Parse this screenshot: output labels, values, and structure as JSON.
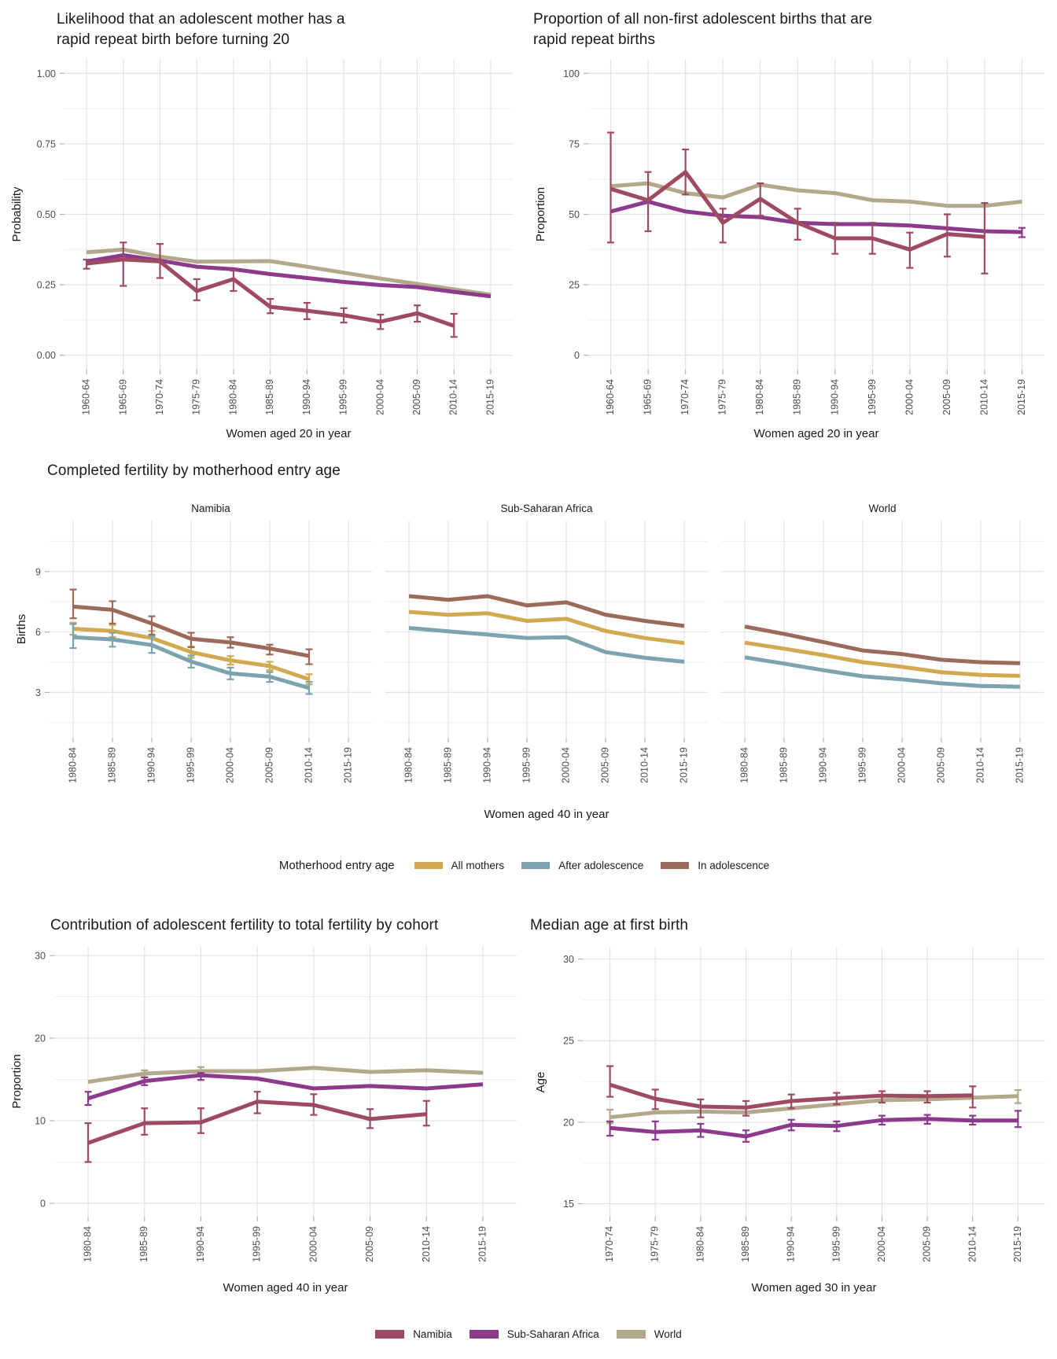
{
  "colors": {
    "namibia": "#9e4a60",
    "sub_saharan_africa": "#8b3a8c",
    "world": "#b3a88a",
    "all_mothers": "#d2a950",
    "after_adolescence": "#7ba4ae",
    "in_adolescence": "#9c6a5b",
    "grid_major": "#e3e3e3",
    "grid_minor": "#f0f0f0",
    "tick_mark": "#b3b3b3",
    "title_text": "#1a1a1a",
    "tick_text": "#4d4d4d"
  },
  "legend_mid": {
    "title": "Motherhood entry age",
    "items": [
      {
        "label": "All mothers",
        "color": "all_mothers"
      },
      {
        "label": "After adolescence",
        "color": "after_adolescence"
      },
      {
        "label": "In adolescence",
        "color": "in_adolescence"
      }
    ]
  },
  "legend_bottom": {
    "items": [
      {
        "label": "Namibia",
        "color": "namibia"
      },
      {
        "label": "Sub-Saharan Africa",
        "color": "sub_saharan_africa"
      },
      {
        "label": "World",
        "color": "world"
      }
    ]
  },
  "chart_data": [
    {
      "id": "rrb_likelihood",
      "type": "line",
      "title": "Likelihood that an adolescent mother has a\nrapid repeat birth before turning 20",
      "xlabel": "Women aged 20 in year",
      "ylabel": "Probability",
      "categories": [
        "1960-64",
        "1965-69",
        "1970-74",
        "1975-79",
        "1980-84",
        "1985-89",
        "1990-94",
        "1995-99",
        "2000-04",
        "2005-09",
        "2010-14",
        "2015-19"
      ],
      "ylim": [
        0,
        1
      ],
      "ydomain": [
        -0.051,
        1.051
      ],
      "yticks": [
        {
          "v": 0,
          "label": "0.00"
        },
        {
          "v": 0.25,
          "label": "0.25"
        },
        {
          "v": 0.5,
          "label": "0.50"
        },
        {
          "v": 0.75,
          "label": "0.75"
        },
        {
          "v": 1,
          "label": "1.00"
        }
      ],
      "yminor": [
        0.125,
        0.375,
        0.625,
        0.875
      ],
      "series": [
        {
          "name": "World",
          "color": "world",
          "values": [
            0.365,
            0.375,
            0.35,
            0.332,
            0.333,
            0.334,
            0.314,
            0.293,
            0.272,
            0.253,
            0.234,
            0.215
          ]
        },
        {
          "name": "Sub-Saharan Africa",
          "color": "sub_saharan_africa",
          "values": [
            0.333,
            0.355,
            0.336,
            0.314,
            0.305,
            0.288,
            0.274,
            0.26,
            0.249,
            0.242,
            0.225,
            0.209
          ]
        },
        {
          "name": "Namibia",
          "color": "namibia",
          "values": [
            0.325,
            0.34,
            0.333,
            0.228,
            0.27,
            0.172,
            0.158,
            0.142,
            0.119,
            0.149,
            0.104,
            null
          ],
          "lo": [
            0.307,
            0.246,
            0.274,
            0.195,
            0.228,
            0.149,
            0.128,
            0.116,
            0.093,
            0.119,
            0.065,
            null
          ],
          "hi": [
            0.339,
            0.4,
            0.395,
            0.27,
            0.3,
            0.2,
            0.186,
            0.167,
            0.144,
            0.177,
            0.147,
            null
          ]
        }
      ]
    },
    {
      "id": "rrb_proportion",
      "type": "line",
      "title": "Proportion of all non-first adolescent births that are\nrapid repeat births",
      "xlabel": "Women aged 20 in year",
      "ylabel": "Proportion",
      "categories": [
        "1960-64",
        "1965-69",
        "1970-74",
        "1975-79",
        "1980-84",
        "1985-89",
        "1990-94",
        "1995-99",
        "2000-04",
        "2005-09",
        "2010-14",
        "2015-19"
      ],
      "ylim": [
        0,
        100
      ],
      "ydomain": [
        -5.1,
        105.1
      ],
      "yticks": [
        {
          "v": 0,
          "label": "0"
        },
        {
          "v": 25,
          "label": "25"
        },
        {
          "v": 50,
          "label": "50"
        },
        {
          "v": 75,
          "label": "75"
        },
        {
          "v": 100,
          "label": "100"
        }
      ],
      "yminor": [
        12.5,
        37.5,
        62.5,
        87.5
      ],
      "series": [
        {
          "name": "World",
          "color": "world",
          "values": [
            60,
            61,
            57.5,
            56,
            60.5,
            58.5,
            57.5,
            55,
            54.5,
            53,
            53,
            54.5
          ]
        },
        {
          "name": "Sub-Saharan Africa",
          "color": "sub_saharan_africa",
          "values": [
            51,
            54.5,
            51,
            49.5,
            49,
            47,
            46.5,
            46.5,
            46,
            45,
            44,
            43.7
          ],
          "lo": [
            null,
            null,
            null,
            null,
            null,
            null,
            null,
            null,
            null,
            null,
            null,
            41.9
          ],
          "hi": [
            null,
            null,
            null,
            null,
            null,
            null,
            null,
            null,
            null,
            null,
            null,
            45.2
          ]
        },
        {
          "name": "Namibia",
          "color": "namibia",
          "values": [
            59,
            55,
            65,
            47,
            55.5,
            47,
            41.5,
            41.5,
            37.5,
            43,
            42,
            null
          ],
          "lo": [
            40,
            44,
            57,
            40,
            49.5,
            41,
            36,
            36,
            31,
            35,
            29,
            null
          ],
          "hi": [
            79,
            65,
            73,
            52,
            61,
            52,
            47,
            47,
            43.5,
            50,
            54,
            null
          ]
        }
      ]
    },
    {
      "id": "completed_fertility",
      "type": "line",
      "title": "Completed fertility by motherhood entry age",
      "xlabel": "Women aged 40 in year",
      "ylabel": "Births",
      "categories": [
        "1980-84",
        "1985-89",
        "1990-94",
        "1995-99",
        "2000-04",
        "2005-09",
        "2010-14",
        "2015-19"
      ],
      "ylim": [
        3,
        9
      ],
      "ydomain": [
        0.75,
        11.53
      ],
      "yticks": [
        {
          "v": 3,
          "label": "3"
        },
        {
          "v": 6,
          "label": "6"
        },
        {
          "v": 9,
          "label": "9"
        }
      ],
      "yminor": [
        1.5,
        4.5,
        7.5,
        10.5
      ],
      "facets": [
        {
          "label": "Namibia",
          "series": [
            {
              "name": "All mothers",
              "color": "all_mothers",
              "values": [
                6.16,
                6.05,
                5.7,
                5.0,
                4.59,
                4.31,
                3.65,
                null
              ],
              "lo": [
                5.86,
                5.75,
                5.35,
                4.72,
                4.38,
                4.1,
                3.4,
                null
              ],
              "hi": [
                6.46,
                6.35,
                6.05,
                5.28,
                4.8,
                4.52,
                3.9,
                null
              ]
            },
            {
              "name": "After adolescence",
              "color": "after_adolescence",
              "values": [
                5.74,
                5.63,
                5.35,
                4.53,
                3.94,
                3.78,
                3.22,
                null
              ],
              "lo": [
                5.2,
                5.27,
                4.96,
                4.23,
                3.65,
                3.52,
                2.92,
                null
              ],
              "hi": [
                6.39,
                5.96,
                5.79,
                4.83,
                4.23,
                4.01,
                3.52,
                null
              ]
            },
            {
              "name": "In adolescence",
              "color": "in_adolescence",
              "values": [
                7.26,
                7.1,
                6.42,
                5.66,
                5.48,
                5.18,
                4.81,
                null
              ],
              "lo": [
                6.68,
                6.42,
                5.87,
                5.24,
                5.22,
                4.88,
                4.4,
                null
              ],
              "hi": [
                8.11,
                7.53,
                6.78,
                5.96,
                5.74,
                5.37,
                5.14,
                null
              ]
            }
          ]
        },
        {
          "label": "Sub-Saharan Africa",
          "series": [
            {
              "name": "All mothers",
              "color": "all_mothers",
              "values": [
                7.0,
                6.85,
                6.93,
                6.55,
                6.65,
                6.05,
                5.7,
                5.45
              ]
            },
            {
              "name": "After adolescence",
              "color": "after_adolescence",
              "values": [
                6.2,
                6.03,
                5.87,
                5.7,
                5.74,
                5.0,
                4.72,
                4.52
              ]
            },
            {
              "name": "In adolescence",
              "color": "in_adolescence",
              "values": [
                7.78,
                7.6,
                7.78,
                7.32,
                7.47,
                6.86,
                6.55,
                6.3
              ]
            }
          ]
        },
        {
          "label": "World",
          "series": [
            {
              "name": "All mothers",
              "color": "all_mothers",
              "values": [
                5.47,
                5.17,
                4.85,
                4.5,
                4.27,
                4.0,
                3.87,
                3.82
              ]
            },
            {
              "name": "After adolescence",
              "color": "after_adolescence",
              "values": [
                4.74,
                4.43,
                4.1,
                3.8,
                3.65,
                3.45,
                3.32,
                3.28
              ]
            },
            {
              "name": "In adolescence",
              "color": "in_adolescence",
              "values": [
                6.27,
                5.9,
                5.5,
                5.08,
                4.9,
                4.62,
                4.5,
                4.45
              ]
            }
          ]
        }
      ]
    },
    {
      "id": "contribution",
      "type": "line",
      "title": "Contribution of adolescent fertility to total fertility by cohort",
      "xlabel": "Women aged 40 in year",
      "ylabel": "Proportion",
      "categories": [
        "1980-84",
        "1985-89",
        "1990-94",
        "1995-99",
        "2000-04",
        "2005-09",
        "2010-14",
        "2015-19"
      ],
      "ylim": [
        0,
        30
      ],
      "ydomain": [
        -1.62,
        31.14
      ],
      "yticks": [
        {
          "v": 0,
          "label": "0"
        },
        {
          "v": 10,
          "label": "10"
        },
        {
          "v": 20,
          "label": "20"
        },
        {
          "v": 30,
          "label": "30"
        }
      ],
      "yminor": [
        5,
        15,
        25
      ],
      "series": [
        {
          "name": "World",
          "color": "world",
          "values": [
            14.7,
            15.7,
            16.0,
            16.0,
            16.4,
            15.9,
            16.1,
            15.8
          ],
          "lo": [
            null,
            15.25,
            15.65,
            null,
            null,
            null,
            null,
            null
          ],
          "hi": [
            null,
            16.1,
            16.5,
            null,
            null,
            null,
            null,
            null
          ]
        },
        {
          "name": "Sub-Saharan Africa",
          "color": "sub_saharan_africa",
          "values": [
            12.7,
            14.8,
            15.5,
            15.1,
            13.9,
            14.2,
            13.9,
            14.4
          ],
          "lo": [
            11.9,
            14.3,
            14.93,
            null,
            null,
            null,
            null,
            null
          ],
          "hi": [
            13.5,
            15.25,
            15.78,
            null,
            null,
            null,
            null,
            null
          ]
        },
        {
          "name": "Namibia",
          "color": "namibia",
          "values": [
            7.3,
            9.7,
            9.8,
            12.3,
            11.9,
            10.2,
            10.8,
            null
          ],
          "lo": [
            5.0,
            8.3,
            8.5,
            10.9,
            10.7,
            9.1,
            9.4,
            null
          ],
          "hi": [
            9.7,
            11.5,
            11.5,
            13.5,
            13.2,
            11.4,
            12.4,
            null
          ]
        }
      ]
    },
    {
      "id": "median_age",
      "type": "line",
      "title": "Median age at first birth",
      "xlabel": "Women aged 30 in year",
      "ylabel": "Age",
      "categories": [
        "1970-74",
        "1975-79",
        "1980-84",
        "1985-89",
        "1990-94",
        "1995-99",
        "2000-04",
        "2005-09",
        "2010-14",
        "2015-19"
      ],
      "ylim": [
        15,
        30
      ],
      "ydomain": [
        14.21,
        30.7
      ],
      "yticks": [
        {
          "v": 15,
          "label": "15"
        },
        {
          "v": 20,
          "label": "20"
        },
        {
          "v": 25,
          "label": "25"
        },
        {
          "v": 30,
          "label": "30"
        }
      ],
      "yminor": [
        17.5,
        22.5,
        27.5
      ],
      "series": [
        {
          "name": "World",
          "color": "world",
          "values": [
            20.3,
            20.6,
            20.65,
            20.6,
            20.85,
            21.1,
            21.35,
            21.4,
            21.5,
            21.6
          ],
          "lo": [
            19.94,
            null,
            null,
            null,
            null,
            null,
            null,
            null,
            null,
            21.17
          ],
          "hi": [
            20.77,
            null,
            null,
            null,
            null,
            null,
            null,
            null,
            null,
            21.97
          ]
        },
        {
          "name": "Sub-Saharan Africa",
          "color": "sub_saharan_africa",
          "values": [
            19.65,
            19.4,
            19.5,
            19.13,
            19.84,
            19.77,
            20.13,
            20.2,
            20.1,
            20.1
          ],
          "lo": [
            19.17,
            18.93,
            19.1,
            18.8,
            19.5,
            19.45,
            19.85,
            19.9,
            19.85,
            19.7
          ],
          "hi": [
            20.05,
            20.05,
            19.9,
            19.5,
            20.15,
            20.05,
            20.4,
            20.45,
            20.4,
            20.7
          ]
        },
        {
          "name": "Namibia",
          "color": "namibia",
          "values": [
            22.3,
            21.44,
            20.96,
            20.9,
            21.3,
            21.47,
            21.63,
            21.6,
            21.65,
            null
          ],
          "lo": [
            21.56,
            20.8,
            20.3,
            20.4,
            20.85,
            21.1,
            21.2,
            21.2,
            20.9,
            null
          ],
          "hi": [
            23.44,
            22.0,
            21.4,
            21.3,
            21.7,
            21.8,
            21.9,
            21.9,
            22.2,
            null
          ]
        }
      ]
    }
  ]
}
